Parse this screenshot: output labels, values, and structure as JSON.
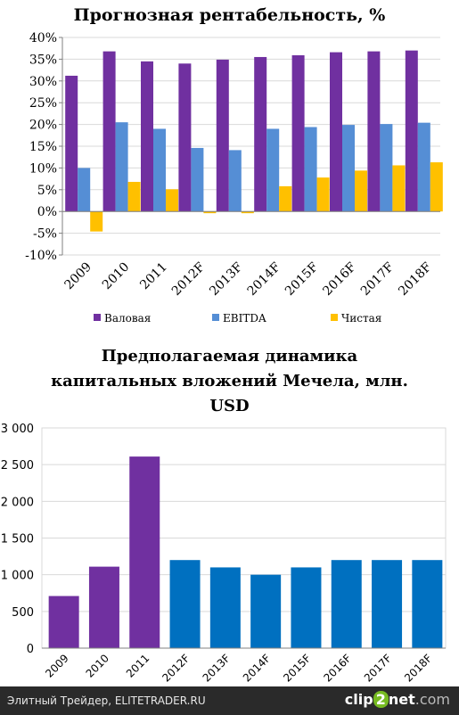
{
  "chart_data": [
    {
      "type": "bar",
      "title": "Прогнозная рентабельность, %",
      "categories": [
        "2009",
        "2010",
        "2011",
        "2012F",
        "2013F",
        "2014F",
        "2015F",
        "2016F",
        "2017F",
        "2018F"
      ],
      "series": [
        {
          "name": "Валовая",
          "color": "#7030a0",
          "values": [
            31.2,
            36.8,
            34.5,
            34.0,
            34.9,
            35.5,
            35.9,
            36.6,
            36.8,
            37.0
          ]
        },
        {
          "name": "EBITDA",
          "color": "#558ed5",
          "values": [
            10.0,
            20.5,
            19.0,
            14.6,
            14.1,
            19.0,
            19.4,
            19.9,
            20.1,
            20.4
          ]
        },
        {
          "name": "Чистая",
          "color": "#ffc000",
          "values": [
            -4.6,
            6.8,
            5.1,
            -0.4,
            -0.4,
            5.8,
            7.8,
            9.4,
            10.6,
            11.3
          ]
        }
      ],
      "ylim": [
        -10,
        40
      ],
      "yticks": [
        "-10%",
        "-5%",
        "0%",
        "5%",
        "10%",
        "15%",
        "20%",
        "25%",
        "30%",
        "35%",
        "40%"
      ],
      "legend_position": "bottom",
      "grid": true
    },
    {
      "type": "bar",
      "title": "Предполагаемая динамика капитальных вложений Мечела, млн. USD",
      "title_lines": [
        "Предполагаемая динамика",
        "капитальных вложений Мечела, млн.",
        "USD"
      ],
      "categories": [
        "2009",
        "2010",
        "2011",
        "2012F",
        "2013F",
        "2014F",
        "2015F",
        "2016F",
        "2017F",
        "2018F"
      ],
      "values": [
        710,
        1110,
        2610,
        1200,
        1100,
        1000,
        1100,
        1200,
        1200,
        1200
      ],
      "colors": [
        "#7030a0",
        "#7030a0",
        "#7030a0",
        "#0070c0",
        "#0070c0",
        "#0070c0",
        "#0070c0",
        "#0070c0",
        "#0070c0",
        "#0070c0"
      ],
      "ylim": [
        0,
        3000
      ],
      "yticks": [
        "0",
        "500",
        "1 000",
        "1 500",
        "2 000",
        "2 500",
        "3 000"
      ],
      "grid": true
    }
  ],
  "footer": {
    "left_text": "Элитный Трейдер, ELITETRADER.RU",
    "logo": {
      "clip": "clip",
      "two": "2",
      "net": "net",
      "dotnet": ".com"
    }
  }
}
